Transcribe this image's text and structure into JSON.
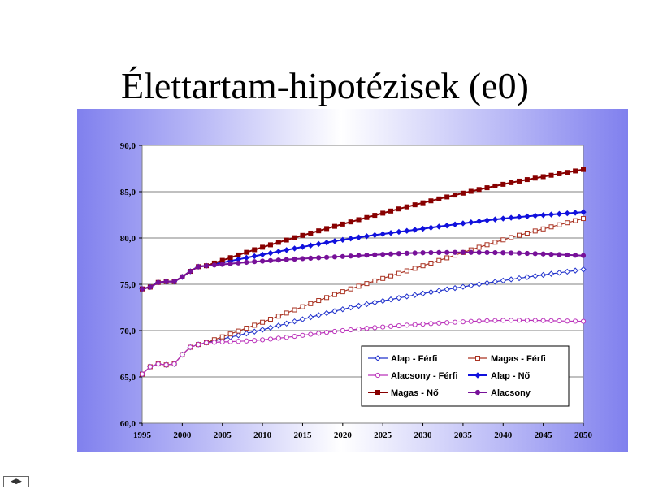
{
  "slide": {
    "title": "Élettartam-hipotézisek (e0)"
  },
  "nav": {
    "icon": "slide-nav-icon"
  },
  "chart_data": {
    "type": "line",
    "title": "",
    "xlabel": "",
    "ylabel": "",
    "xlim": [
      1995,
      2050
    ],
    "ylim": [
      60,
      90
    ],
    "yticks": [
      "60,0",
      "65,0",
      "70,0",
      "75,0",
      "80,0",
      "85,0",
      "90,0"
    ],
    "xticks": [
      "1995",
      "2000",
      "2005",
      "2010",
      "2015",
      "2020",
      "2025",
      "2030",
      "2035",
      "2040",
      "2045",
      "2050"
    ],
    "grid": "horizontal",
    "legend_position": "bottom-right-inside",
    "historical_years": [
      1995,
      1996,
      1997,
      1998,
      1999,
      2000,
      2001,
      2002,
      2003
    ],
    "series": [
      {
        "name": "Alap - Férfi",
        "color": "#2233cc",
        "marker": "diamond-open",
        "hist": [
          65.3,
          66.1,
          66.4,
          66.3,
          66.4,
          67.4,
          68.2,
          68.5,
          68.7
        ],
        "anchors": [
          [
            2003,
            68.7
          ],
          [
            2010,
            70.1
          ],
          [
            2020,
            72.3
          ],
          [
            2030,
            74.0
          ],
          [
            2040,
            75.4
          ],
          [
            2050,
            76.6
          ]
        ]
      },
      {
        "name": "Magas - Férfi",
        "color": "#aa3322",
        "marker": "square-open",
        "hist": [
          65.3,
          66.1,
          66.4,
          66.3,
          66.4,
          67.4,
          68.2,
          68.5,
          68.7
        ],
        "anchors": [
          [
            2003,
            68.7
          ],
          [
            2010,
            70.9
          ],
          [
            2020,
            74.2
          ],
          [
            2030,
            77.0
          ],
          [
            2040,
            79.8
          ],
          [
            2050,
            82.1
          ]
        ]
      },
      {
        "name": "Alacsony - Férfi",
        "color": "#bb33bb",
        "marker": "circle-open",
        "hist": [
          65.3,
          66.1,
          66.4,
          66.3,
          66.4,
          67.4,
          68.2,
          68.5,
          68.7
        ],
        "anchors": [
          [
            2003,
            68.7
          ],
          [
            2010,
            69.0
          ],
          [
            2020,
            70.0
          ],
          [
            2030,
            70.7
          ],
          [
            2040,
            71.1
          ],
          [
            2050,
            71.0
          ]
        ]
      },
      {
        "name": "Alap - Nő",
        "color": "#1111dd",
        "marker": "diamond",
        "hist": [
          74.5,
          74.7,
          75.2,
          75.3,
          75.3,
          75.8,
          76.4,
          76.9,
          77.0
        ],
        "anchors": [
          [
            2003,
            77.0
          ],
          [
            2010,
            78.2
          ],
          [
            2020,
            79.8
          ],
          [
            2030,
            81.0
          ],
          [
            2040,
            82.1
          ],
          [
            2050,
            82.8
          ]
        ]
      },
      {
        "name": "Magas - Nő",
        "color": "#880000",
        "marker": "square",
        "hist": [
          74.5,
          74.7,
          75.2,
          75.3,
          75.3,
          75.8,
          76.4,
          76.9,
          77.0
        ],
        "anchors": [
          [
            2003,
            77.0
          ],
          [
            2010,
            79.0
          ],
          [
            2020,
            81.5
          ],
          [
            2030,
            83.8
          ],
          [
            2040,
            85.8
          ],
          [
            2050,
            87.4
          ]
        ]
      },
      {
        "name": "Alacsony",
        "color": "#771199",
        "marker": "circle",
        "hist": [
          74.5,
          74.7,
          75.2,
          75.3,
          75.3,
          75.8,
          76.4,
          76.9,
          77.0
        ],
        "anchors": [
          [
            2003,
            77.0
          ],
          [
            2010,
            77.5
          ],
          [
            2020,
            78.0
          ],
          [
            2030,
            78.4
          ],
          [
            2040,
            78.4
          ],
          [
            2050,
            78.1
          ]
        ]
      }
    ]
  }
}
